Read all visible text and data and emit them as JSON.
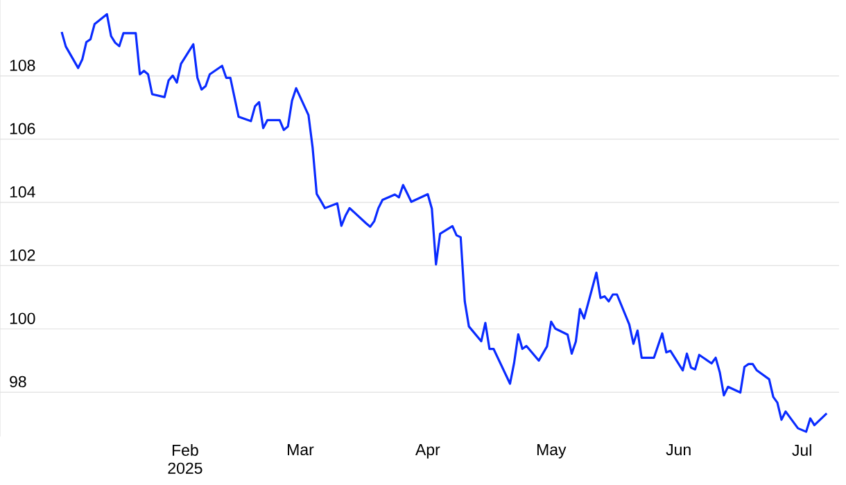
{
  "chart_data": {
    "type": "line",
    "color": "#0a2bff",
    "grid": "y",
    "line_style": "solid",
    "marker": "none",
    "x": [
      "2025-01-02",
      "2025-01-03",
      "2025-01-06",
      "2025-01-07",
      "2025-01-08",
      "2025-01-09",
      "2025-01-10",
      "2025-01-13",
      "2025-01-14",
      "2025-01-15",
      "2025-01-16",
      "2025-01-17",
      "2025-01-20",
      "2025-01-21",
      "2025-01-22",
      "2025-01-23",
      "2025-01-24",
      "2025-01-27",
      "2025-01-28",
      "2025-01-29",
      "2025-01-30",
      "2025-01-31",
      "2025-02-03",
      "2025-02-04",
      "2025-02-05",
      "2025-02-06",
      "2025-02-07",
      "2025-02-10",
      "2025-02-11",
      "2025-02-12",
      "2025-02-14",
      "2025-02-17",
      "2025-02-18",
      "2025-02-19",
      "2025-02-20",
      "2025-02-21",
      "2025-02-24",
      "2025-02-25",
      "2025-02-26",
      "2025-02-27",
      "2025-02-28",
      "2025-03-03",
      "2025-03-04",
      "2025-03-05",
      "2025-03-06",
      "2025-03-07",
      "2025-03-10",
      "2025-03-11",
      "2025-03-12",
      "2025-03-13",
      "2025-03-17",
      "2025-03-18",
      "2025-03-19",
      "2025-03-20",
      "2025-03-21",
      "2025-03-24",
      "2025-03-25",
      "2025-03-26",
      "2025-03-27",
      "2025-03-28",
      "2025-04-01",
      "2025-04-02",
      "2025-04-03",
      "2025-04-04",
      "2025-04-07",
      "2025-04-08",
      "2025-04-09",
      "2025-04-10",
      "2025-04-11",
      "2025-04-14",
      "2025-04-15",
      "2025-04-16",
      "2025-04-17",
      "2025-04-21",
      "2025-04-22",
      "2025-04-23",
      "2025-04-24",
      "2025-04-25",
      "2025-04-28",
      "2025-04-30",
      "2025-05-01",
      "2025-05-02",
      "2025-05-05",
      "2025-05-06",
      "2025-05-07",
      "2025-05-08",
      "2025-05-09",
      "2025-05-12",
      "2025-05-13",
      "2025-05-14",
      "2025-05-15",
      "2025-05-16",
      "2025-05-17",
      "2025-05-20",
      "2025-05-21",
      "2025-05-22",
      "2025-05-23",
      "2025-05-26",
      "2025-05-28",
      "2025-05-29",
      "2025-05-30",
      "2025-06-02",
      "2025-06-03",
      "2025-06-04",
      "2025-06-05",
      "2025-06-06",
      "2025-06-09",
      "2025-06-10",
      "2025-06-11",
      "2025-06-12",
      "2025-06-13",
      "2025-06-16",
      "2025-06-17",
      "2025-06-18",
      "2025-06-19",
      "2025-06-20",
      "2025-06-23",
      "2025-06-24",
      "2025-06-25",
      "2025-06-26",
      "2025-06-27",
      "2025-06-30",
      "2025-07-02",
      "2025-07-03",
      "2025-07-04",
      "2025-07-07"
    ],
    "values": [
      109.39,
      108.93,
      108.25,
      108.52,
      109.07,
      109.16,
      109.64,
      109.95,
      109.26,
      109.05,
      108.94,
      109.35,
      109.35,
      108.05,
      108.16,
      108.05,
      107.42,
      107.33,
      107.86,
      108.01,
      107.79,
      108.38,
      109.0,
      107.94,
      107.57,
      107.68,
      108.05,
      108.32,
      107.94,
      107.94,
      106.71,
      106.57,
      107.04,
      107.17,
      106.35,
      106.6,
      106.6,
      106.29,
      106.4,
      107.22,
      107.61,
      106.76,
      105.74,
      104.27,
      104.05,
      103.82,
      103.97,
      103.26,
      103.58,
      103.82,
      103.34,
      103.23,
      103.41,
      103.82,
      104.08,
      104.25,
      104.16,
      104.55,
      104.29,
      104.02,
      104.26,
      103.8,
      102.04,
      103.01,
      103.25,
      102.96,
      102.9,
      100.87,
      100.08,
      99.61,
      100.19,
      99.37,
      99.37,
      98.27,
      98.93,
      99.83,
      99.37,
      99.46,
      99.0,
      99.45,
      100.23,
      100.01,
      99.82,
      99.22,
      99.6,
      100.63,
      100.33,
      101.78,
      100.98,
      101.03,
      100.87,
      101.09,
      101.09,
      100.14,
      99.53,
      99.95,
      99.09,
      99.09,
      99.86,
      99.26,
      99.31,
      98.69,
      99.22,
      98.78,
      98.72,
      99.18,
      98.91,
      99.09,
      98.63,
      97.9,
      98.17,
      97.99,
      98.8,
      98.89,
      98.89,
      98.69,
      98.41,
      97.85,
      97.67,
      97.13,
      97.39,
      96.86,
      96.75,
      97.17,
      96.96,
      97.33
    ],
    "xlim": [
      "2024-12-18",
      "2025-07-10"
    ],
    "ylim": [
      96.6,
      110.4
    ],
    "xticks": [
      {
        "value": "2025-02-01",
        "label": "Feb 2025"
      },
      {
        "value": "2025-03-01",
        "label": "Mar"
      },
      {
        "value": "2025-04-01",
        "label": "Apr"
      },
      {
        "value": "2025-05-01",
        "label": "May"
      },
      {
        "value": "2025-06-01",
        "label": "Jun"
      },
      {
        "value": "2025-07-01",
        "label": "Jul"
      }
    ],
    "yticks": [
      98,
      100,
      102,
      104,
      106,
      108
    ]
  }
}
